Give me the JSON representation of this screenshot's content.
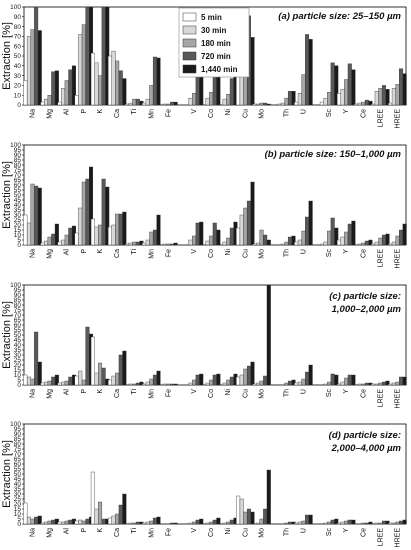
{
  "chart_data": [
    {
      "type": "bar",
      "title": "(a) particle size: 25–150 µm",
      "ylabel": "Extraction [%]",
      "ylim": [
        0,
        100
      ],
      "yticks": [
        0,
        10,
        20,
        30,
        40,
        50,
        60,
        70,
        80,
        90,
        100
      ],
      "legend_position": "top-center",
      "categories": [
        "Na",
        "Mg",
        "Al",
        "P",
        "K",
        "Ca",
        "Ti",
        "Mn",
        "Fe",
        "V",
        "Co",
        "Ni",
        "Cu",
        "Mo",
        "Th",
        "U",
        "Sc",
        "Y",
        "Ce",
        "LREE",
        "HREE"
      ],
      "series": [
        {
          "name": "5 min",
          "color": "#ffffff",
          "values": [
            25,
            3,
            3,
            10,
            53,
            50,
            1,
            2,
            0,
            0,
            0,
            0,
            31,
            1,
            1,
            3,
            3,
            12,
            1,
            1,
            2
          ]
        },
        {
          "name": "30 min",
          "color": "#d9d9d9",
          "values": [
            70,
            6,
            17,
            72,
            43,
            55,
            2,
            6,
            1,
            7,
            7,
            6,
            59,
            1,
            2,
            12,
            7,
            16,
            2,
            14,
            17
          ]
        },
        {
          "name": "180 min",
          "color": "#a6a6a6",
          "values": [
            77,
            10,
            25,
            82,
            30,
            45,
            6,
            20,
            1,
            12,
            13,
            11,
            58,
            2,
            7,
            31,
            13,
            26,
            3,
            17,
            21
          ]
        },
        {
          "name": "720 min",
          "color": "#595959",
          "values": [
            100,
            34,
            36,
            100,
            100,
            35,
            6,
            49,
            3,
            35,
            33,
            27,
            91,
            2,
            14,
            72,
            43,
            42,
            5,
            20,
            37
          ]
        },
        {
          "name": "1,440 min",
          "color": "#1a1a1a",
          "values": [
            76,
            35,
            40,
            100,
            100,
            27,
            4,
            48,
            3,
            34,
            34,
            29,
            69,
            1,
            14,
            67,
            40,
            36,
            4,
            16,
            32
          ]
        }
      ]
    },
    {
      "type": "bar",
      "title": "(b) particle size: 150–1,000 µm",
      "ylabel": "Extraction [%]",
      "ylim": [
        0,
        100
      ],
      "yticks": [
        0,
        5,
        10,
        15,
        20,
        25,
        30,
        35,
        40,
        45,
        50,
        55,
        60,
        65,
        70,
        75,
        80,
        85,
        90,
        95,
        100
      ],
      "categories": [
        "Na",
        "Mg",
        "Al",
        "P",
        "K",
        "Ca",
        "Ti",
        "Mn",
        "Fe",
        "V",
        "Co",
        "Ni",
        "Cu",
        "Mo",
        "Th",
        "U",
        "Sc",
        "Y",
        "Ce",
        "LREE",
        "HREE"
      ],
      "series": [
        {
          "name": "5 min",
          "color": "#ffffff",
          "values": [
            30,
            2,
            3,
            12,
            26,
            18,
            1,
            2,
            0,
            0,
            0,
            0,
            17,
            1,
            0,
            3,
            1,
            5,
            0,
            1,
            1
          ]
        },
        {
          "name": "30 min",
          "color": "#d9d9d9",
          "values": [
            22,
            4,
            5,
            37,
            18,
            20,
            2,
            5,
            1,
            5,
            4,
            3,
            30,
            2,
            1,
            5,
            3,
            8,
            1,
            3,
            3
          ]
        },
        {
          "name": "180 min",
          "color": "#a6a6a6",
          "values": [
            61,
            8,
            10,
            63,
            20,
            31,
            3,
            13,
            1,
            9,
            9,
            7,
            37,
            15,
            3,
            14,
            14,
            13,
            2,
            7,
            9
          ]
        },
        {
          "name": "720 min",
          "color": "#595959",
          "values": [
            59,
            11,
            17,
            66,
            66,
            31,
            3,
            15,
            1,
            22,
            22,
            17,
            44,
            10,
            8,
            28,
            27,
            21,
            4,
            10,
            15
          ]
        },
        {
          "name": "1,440 min",
          "color": "#1a1a1a",
          "values": [
            57,
            21,
            19,
            78,
            58,
            33,
            4,
            30,
            2,
            23,
            15,
            23,
            63,
            5,
            9,
            44,
            17,
            24,
            5,
            11,
            21
          ]
        }
      ]
    },
    {
      "type": "bar",
      "title": "(c) particle size:",
      "title_line2": "1,000–2,000 µm",
      "ylabel": "Extraction [%]",
      "ylim": [
        0,
        100
      ],
      "yticks": [
        0,
        5,
        10,
        15,
        20,
        25,
        30,
        35,
        40,
        45,
        50,
        55,
        60,
        65,
        70,
        75,
        80,
        85,
        90,
        95,
        100
      ],
      "categories": [
        "Na",
        "Mg",
        "Al",
        "P",
        "K",
        "Ca",
        "Ti",
        "Mn",
        "Fe",
        "V",
        "Co",
        "Ni",
        "Cu",
        "Mo",
        "Th",
        "U",
        "Sc",
        "Y",
        "Ce",
        "LREE",
        "HREE"
      ],
      "series": [
        {
          "name": "5 min",
          "color": "#ffffff",
          "values": [
            10,
            2,
            2,
            9,
            48,
            5,
            0,
            1,
            0,
            0,
            0,
            0,
            8,
            1,
            0,
            2,
            0,
            1,
            0,
            1,
            1
          ]
        },
        {
          "name": "30 min",
          "color": "#d9d9d9",
          "values": [
            8,
            3,
            3,
            14,
            12,
            9,
            1,
            3,
            1,
            2,
            2,
            2,
            10,
            2,
            0,
            3,
            1,
            3,
            1,
            1,
            2
          ]
        },
        {
          "name": "180 min",
          "color": "#a6a6a6",
          "values": [
            6,
            4,
            4,
            5,
            22,
            12,
            1,
            6,
            1,
            5,
            5,
            5,
            16,
            4,
            2,
            6,
            3,
            7,
            1,
            2,
            3
          ]
        },
        {
          "name": "720 min",
          "color": "#595959",
          "values": [
            53,
            8,
            8,
            58,
            17,
            30,
            2,
            10,
            1,
            10,
            10,
            8,
            19,
            9,
            4,
            13,
            11,
            10,
            2,
            3,
            8
          ]
        },
        {
          "name": "1,440 min",
          "color": "#1a1a1a",
          "values": [
            23,
            10,
            10,
            51,
            6,
            34,
            3,
            14,
            1,
            11,
            11,
            11,
            23,
            100,
            5,
            20,
            10,
            10,
            2,
            4,
            8
          ]
        }
      ]
    },
    {
      "type": "bar",
      "title": "(d) particle size:",
      "title_line2": "2,000–4,000 µm",
      "ylabel": "Extraction [%]",
      "ylim": [
        0,
        100
      ],
      "yticks": [
        0,
        5,
        10,
        15,
        20,
        25,
        30,
        35,
        40,
        45,
        50,
        55,
        60,
        65,
        70,
        75,
        80,
        85,
        90,
        95,
        100
      ],
      "categories": [
        "Na",
        "Mg",
        "Al",
        "P",
        "K",
        "Ca",
        "Ti",
        "Mn",
        "Fe",
        "V",
        "Co",
        "Ni",
        "Cu",
        "Mo",
        "Th",
        "U",
        "Sc",
        "Y",
        "Ce",
        "LREE",
        "HREE"
      ],
      "series": [
        {
          "name": "5 min",
          "color": "#ffffff",
          "values": [
            21,
            1,
            2,
            3,
            52,
            6,
            0,
            1,
            0,
            0,
            0,
            0,
            28,
            0,
            0,
            1,
            0,
            1,
            0,
            0,
            1
          ]
        },
        {
          "name": "30 min",
          "color": "#d9d9d9",
          "values": [
            7,
            2,
            2,
            4,
            15,
            8,
            1,
            2,
            0,
            1,
            1,
            1,
            25,
            1,
            0,
            2,
            1,
            2,
            0,
            1,
            1
          ]
        },
        {
          "name": "180 min",
          "color": "#a6a6a6",
          "values": [
            5,
            3,
            3,
            3,
            22,
            10,
            1,
            3,
            0,
            2,
            2,
            2,
            12,
            5,
            1,
            3,
            2,
            3,
            1,
            1,
            2
          ]
        },
        {
          "name": "720 min",
          "color": "#595959",
          "values": [
            7,
            4,
            4,
            5,
            5,
            19,
            2,
            6,
            1,
            4,
            4,
            4,
            15,
            15,
            2,
            9,
            4,
            4,
            1,
            3,
            3
          ]
        },
        {
          "name": "1,440 min",
          "color": "#1a1a1a",
          "values": [
            8,
            5,
            5,
            7,
            5,
            30,
            2,
            7,
            1,
            5,
            6,
            6,
            12,
            54,
            2,
            9,
            5,
            4,
            2,
            3,
            4
          ]
        }
      ]
    }
  ]
}
